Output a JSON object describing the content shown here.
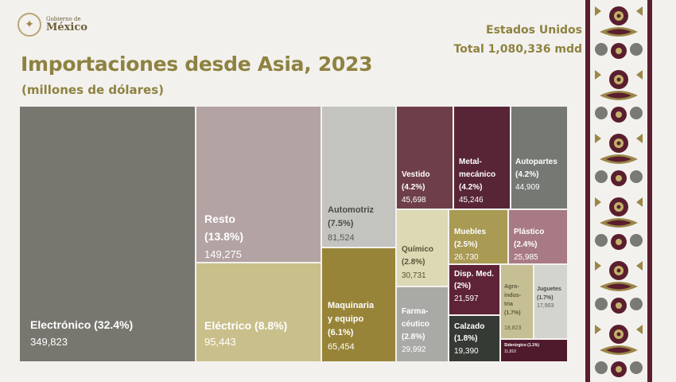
{
  "logo": {
    "line1": "Gobierno de",
    "line2": "México"
  },
  "title": "Importaciones desde Asia, 2023",
  "subtitle": "(millones de dólares)",
  "country": {
    "name": "Estados Unidos",
    "total": "Total 1,080,336 mdd"
  },
  "chart_data": {
    "type": "treemap",
    "title": "Importaciones desde Asia, 2023",
    "subtitle": "(millones de dólares)",
    "total_label": "Total 1,080,336 mdd",
    "items": [
      {
        "name": "Electrónico",
        "share": "(32.4%)",
        "value": 349823,
        "value_text": "349,823",
        "color": "#77766f"
      },
      {
        "name": "Resto",
        "share": "(13.8%)",
        "value": 149275,
        "value_text": "149,275",
        "color": "#b3a3a3"
      },
      {
        "name": "Eléctrico",
        "share": "(8.8%)",
        "value": 95443,
        "value_text": "95,443",
        "color": "#c9bf8a"
      },
      {
        "name": "Automotriz",
        "share": "(7.5%)",
        "value": 81524,
        "value_text": "81,524",
        "color": "#c3c3c0"
      },
      {
        "name": "Maquinaria y equipo",
        "share": "(6.1%)",
        "value": 65454,
        "value_text": "65,454",
        "color": "#988438"
      },
      {
        "name": "Vestido",
        "share": "(4.2%)",
        "value": 45698,
        "value_text": "45,698",
        "color": "#6f3f49"
      },
      {
        "name": "Metal-mecánico",
        "share": "(4.2%)",
        "value": 45246,
        "value_text": "45,246",
        "color": "#582537"
      },
      {
        "name": "Autopartes",
        "share": "(4.2%)",
        "value": 44909,
        "value_text": "44,909",
        "color": "#767874"
      },
      {
        "name": "Químico",
        "share": "(2.8%)",
        "value": 30731,
        "value_text": "30,731",
        "color": "#ddd9b4"
      },
      {
        "name": "Farma-céutico",
        "share": "(2.8%)",
        "value": 29992,
        "value_text": "29,992",
        "color": "#a9a9a6"
      },
      {
        "name": "Muebles",
        "share": "(2.5%)",
        "value": 26730,
        "value_text": "26,730",
        "color": "#a99a54"
      },
      {
        "name": "Plástico",
        "share": "(2.4%)",
        "value": 25985,
        "value_text": "25,985",
        "color": "#a87a84"
      },
      {
        "name": "Disp. Med.",
        "share": "(2%)",
        "value": 21597,
        "value_text": "21,597",
        "color": "#5e2336"
      },
      {
        "name": "Calzado",
        "share": "(1.8%)",
        "value": 19390,
        "value_text": "19,390",
        "color": "#363a35"
      },
      {
        "name": "Agro-industria",
        "share": "(1.7%)",
        "value": 18823,
        "value_text": "18,823",
        "color": "#c6bf94"
      },
      {
        "name": "Juguetes",
        "share": "(1.7%)",
        "value": 17903,
        "value_text": "17,903",
        "color": "#d3d3d0"
      },
      {
        "name": "Siderúrgico",
        "share": "(1.1%)",
        "value": 11810,
        "value_text": "11,810",
        "color": "#4f1a2b"
      }
    ]
  },
  "display": {
    "electronico": {
      "label": "Electrónico (32.4%)",
      "value": "349,823"
    },
    "resto": {
      "label": "Resto\n(13.8%)",
      "value": "149,275"
    },
    "electrico": {
      "label": "Eléctrico (8.8%)",
      "value": "95,443"
    },
    "automotriz": {
      "label": "Automotriz\n(7.5%)",
      "value": "81,524"
    },
    "maquinaria": {
      "label": "Maquinaria\ny equipo\n(6.1%)",
      "value": "65,454"
    },
    "vestido": {
      "label": "Vestido\n(4.2%)",
      "value": "45,698"
    },
    "metal": {
      "label": "Metal-\nmecánico\n(4.2%)",
      "value": "45,246"
    },
    "autopartes": {
      "label": "Autopartes\n(4.2%)",
      "value": "44,909"
    },
    "quimico": {
      "label": "Químico\n(2.8%)",
      "value": "30,731"
    },
    "farma": {
      "label": "Farma-\ncéutico\n(2.8%)",
      "value": "29,992"
    },
    "muebles": {
      "label": "Muebles\n(2.5%)",
      "value": "26,730"
    },
    "plastico": {
      "label": "Plástico\n(2.4%)",
      "value": "25,985"
    },
    "disp": {
      "label": "Disp. Med.\n(2%)",
      "value": "21,597"
    },
    "calzado": {
      "label": "Calzado\n(1.8%)",
      "value": "19,390"
    },
    "agro": {
      "label": "Agro-\nindus-\ntria\n(1.7%)",
      "value": "18,823"
    },
    "juguetes": {
      "label": "Juguetes\n(1.7%)",
      "value": "17,903"
    },
    "siderurgico": {
      "label": "Siderúrgico (1.1%)",
      "value": "11,810"
    }
  }
}
